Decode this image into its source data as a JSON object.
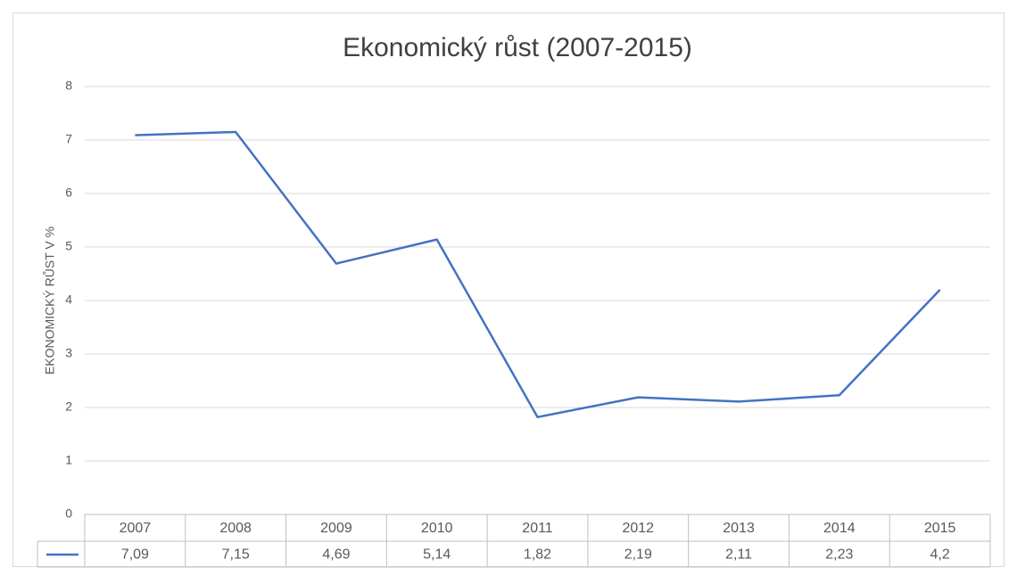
{
  "chart_data": {
    "type": "line",
    "title": "Ekonomický růst (2007-2015)",
    "y_label": "EKONOMICKÝ RŮST V %",
    "categories": [
      "2007",
      "2008",
      "2009",
      "2010",
      "2011",
      "2012",
      "2013",
      "2014",
      "2015"
    ],
    "series": [
      {
        "color": "#4472c4",
        "values": [
          7.09,
          7.15,
          4.69,
          5.14,
          1.82,
          2.19,
          2.11,
          2.23,
          4.2
        ],
        "value_labels": [
          "7,09",
          "7,15",
          "4,69",
          "5,14",
          "1,82",
          "2,19",
          "2,11",
          "2,23",
          "4,2"
        ]
      }
    ],
    "ylim": [
      0,
      8
    ],
    "yticks": [
      0,
      1,
      2,
      3,
      4,
      5,
      6,
      7,
      8
    ],
    "grid": true
  }
}
